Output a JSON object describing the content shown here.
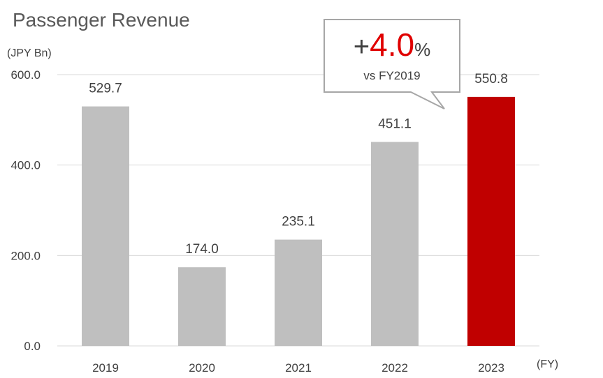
{
  "chart_data": {
    "type": "bar",
    "title": "Passenger Revenue",
    "unit_label": "(JPY Bn)",
    "x_unit_label": "(FY)",
    "categories": [
      "2019",
      "2020",
      "2021",
      "2022",
      "2023"
    ],
    "values": [
      529.7,
      174.0,
      235.1,
      451.1,
      550.8
    ],
    "value_labels": [
      "529.7",
      "174.0",
      "235.1",
      "451.1",
      "550.8"
    ],
    "ylim": [
      0,
      600
    ],
    "yticks": [
      "0.0",
      "200.0",
      "400.0",
      "600.0"
    ],
    "ytick_values": [
      0,
      200,
      400,
      600
    ],
    "grid": true,
    "bar_colors": [
      "#bfbfbf",
      "#bfbfbf",
      "#bfbfbf",
      "#bfbfbf",
      "#c00000"
    ],
    "callout": {
      "sign": "+",
      "value": "4.0",
      "percent": "%",
      "subtitle": "vs FY2019",
      "value_color": "#e00000"
    }
  }
}
